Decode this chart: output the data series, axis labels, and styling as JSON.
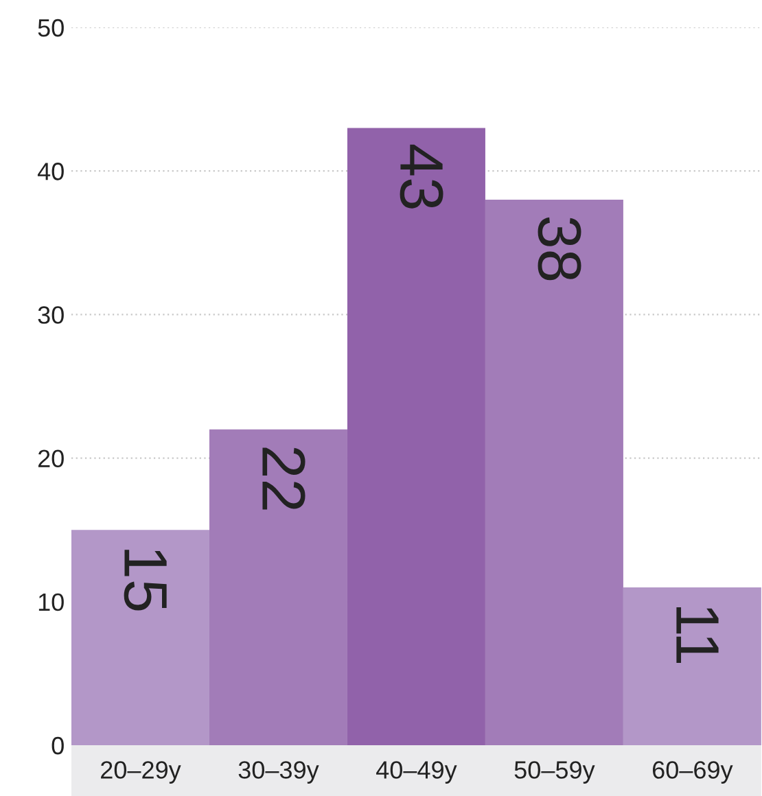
{
  "chart_data": {
    "type": "bar",
    "categories": [
      "20–29y",
      "30–39y",
      "40–49y",
      "50–59y",
      "60–69y"
    ],
    "values": [
      15,
      22,
      43,
      38,
      11
    ],
    "colors": [
      "#b397c8",
      "#a27cb8",
      "#9162aa",
      "#a27cb8",
      "#b397c8"
    ],
    "ylim": [
      0,
      50
    ],
    "yticks": [
      0,
      10,
      20,
      30,
      40,
      50
    ],
    "grid": "y",
    "data_labels": true
  }
}
